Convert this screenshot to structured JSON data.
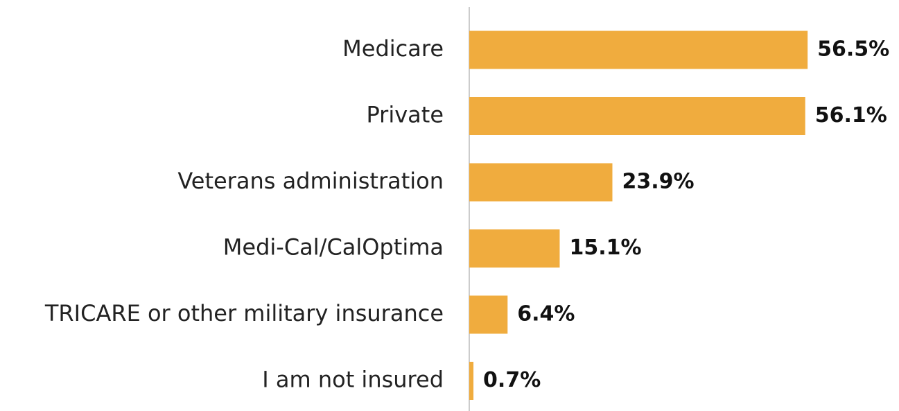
{
  "chart_data": {
    "type": "bar",
    "orientation": "horizontal",
    "categories": [
      "Medicare",
      "Private",
      "Veterans administration",
      "Medi-Cal/CalOptima",
      "TRICARE or other military insurance",
      "I am not insured"
    ],
    "values": [
      56.5,
      56.1,
      23.9,
      15.1,
      6.4,
      0.7
    ],
    "value_labels": [
      "56.5%",
      "56.1%",
      "23.9%",
      "15.1%",
      "6.4%",
      "0.7%"
    ],
    "color": "#f0ac3e"
  }
}
